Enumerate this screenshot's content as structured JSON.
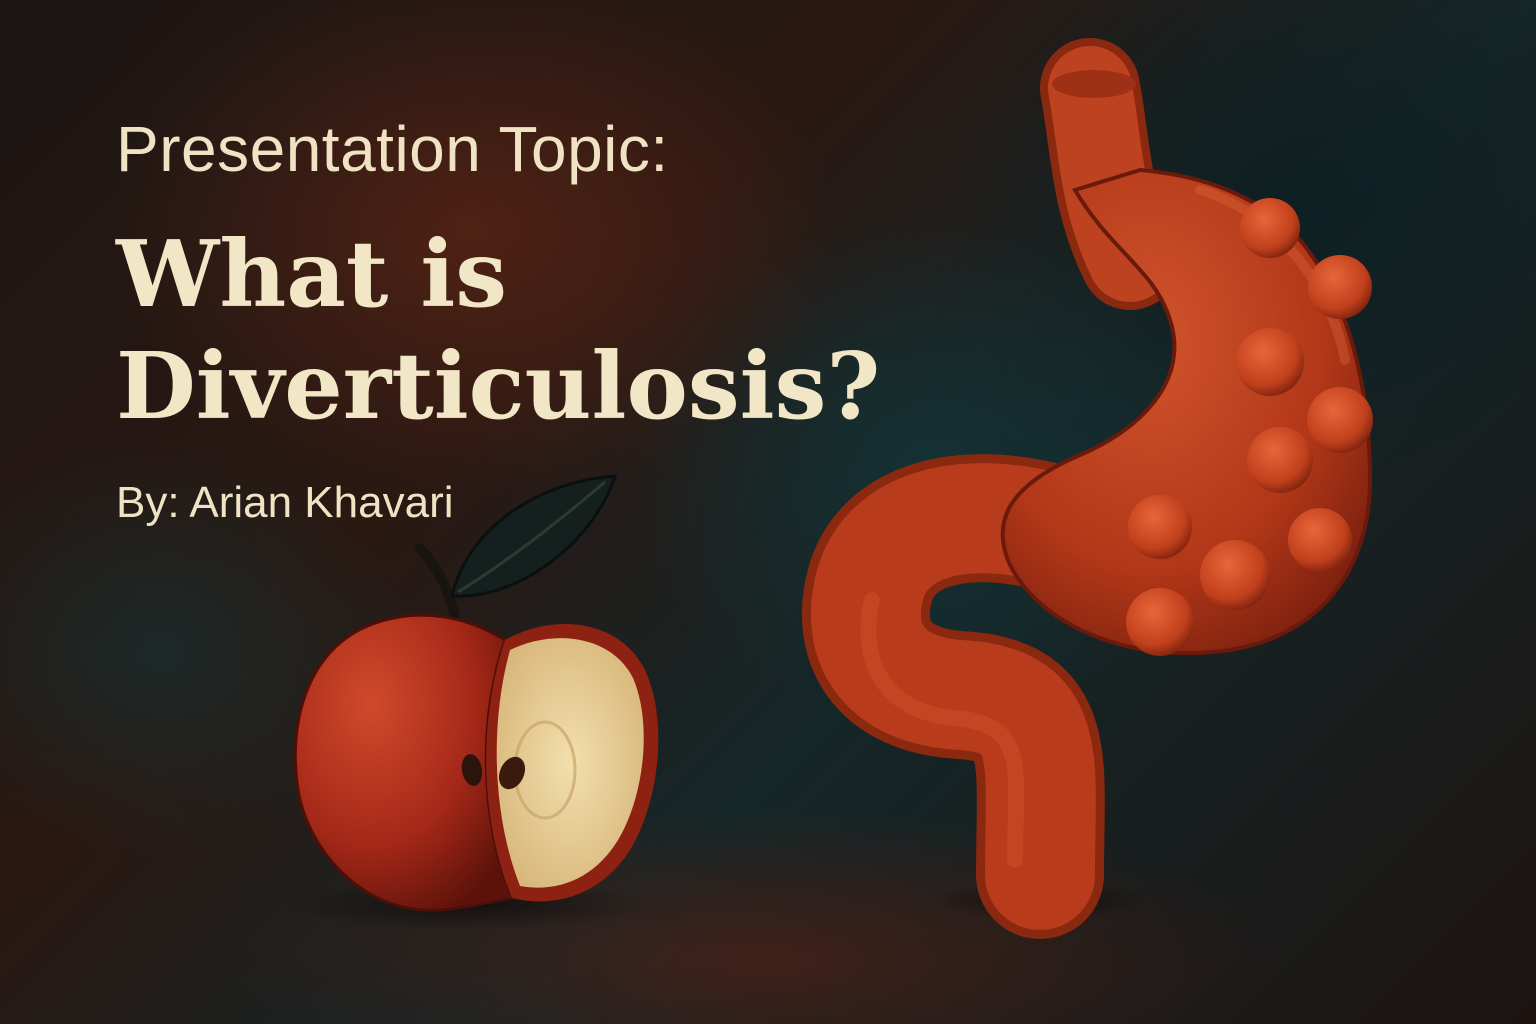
{
  "slide": {
    "subtitle": "Presentation Topic:",
    "title_line1": "What is",
    "title_line2": "Diverticulosis?",
    "byline": "By: Arian Khavari"
  },
  "illustration": {
    "items": [
      "apple-icon",
      "stomach-icon"
    ],
    "colors": {
      "text": "#f1e6c6",
      "organ": "#b8391c",
      "apple_skin": "#a8281a",
      "apple_flesh": "#e6cf99",
      "background_dark": "#1a1211",
      "background_teal": "#163236"
    }
  }
}
